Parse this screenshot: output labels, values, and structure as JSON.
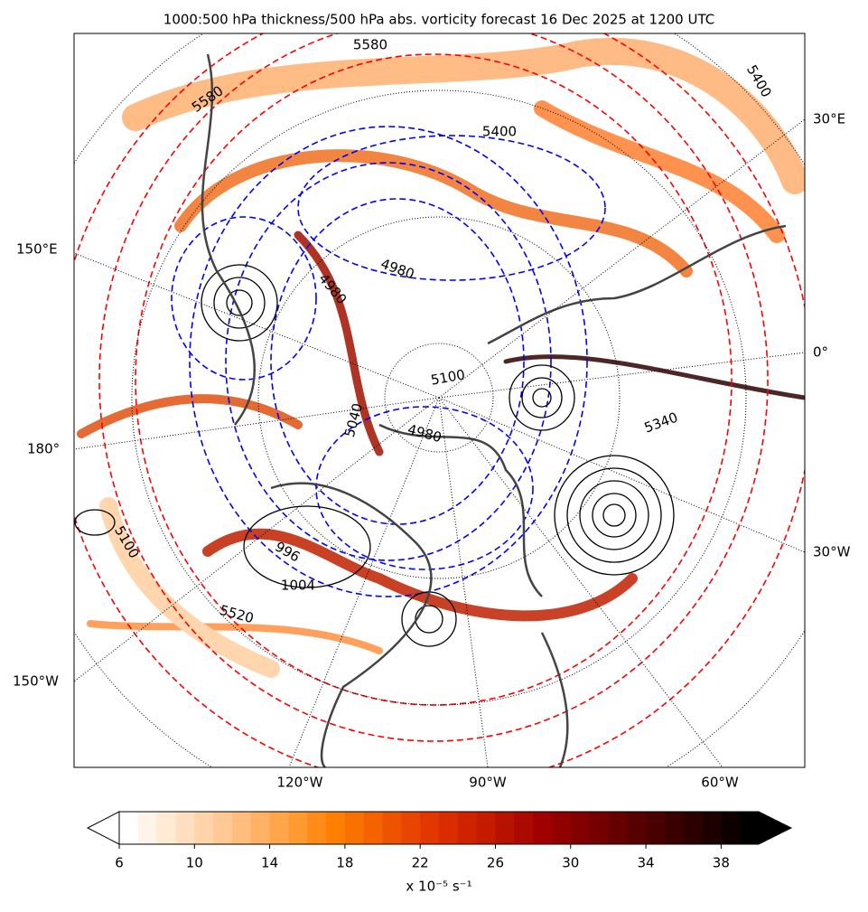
{
  "title": "1000:500 hPa thickness/500 hPa abs. vorticity forecast 16 Dec 2025 at 1200 UTC",
  "map": {
    "lon_labels": [
      "30°E",
      "150°E",
      "0°",
      "180°",
      "30°W",
      "150°W",
      "120°W",
      "90°W",
      "60°W"
    ],
    "contour_labels": [
      {
        "text": "5580",
        "color": "#ff0000"
      },
      {
        "text": "5580",
        "color": "#ff0000"
      },
      {
        "text": "5400",
        "color": "#0000ff"
      },
      {
        "text": "4980",
        "color": "#0000ff"
      },
      {
        "text": "4980",
        "color": "#0000ff"
      },
      {
        "text": "5100",
        "color": "#0000ff"
      },
      {
        "text": "5040",
        "color": "#0000ff"
      },
      {
        "text": "4980",
        "color": "#0000ff"
      },
      {
        "text": "5340",
        "color": "#0000ff"
      },
      {
        "text": "996",
        "color": "#000000"
      },
      {
        "text": "1004",
        "color": "#000000"
      },
      {
        "text": "5520",
        "color": "#ff0000"
      },
      {
        "text": "5400",
        "color": "#ff0000"
      },
      {
        "text": "5100",
        "color": "#ff0000"
      }
    ]
  },
  "colorbar": {
    "range": [
      6,
      40
    ],
    "ticks": [
      6,
      10,
      14,
      18,
      22,
      26,
      30,
      34,
      38
    ],
    "label": "x 10⁻⁵ s⁻¹",
    "colors": [
      "#ffffff",
      "#ffc48a",
      "#ff8000",
      "#e03000",
      "#a00000",
      "#500000",
      "#000000"
    ]
  }
}
